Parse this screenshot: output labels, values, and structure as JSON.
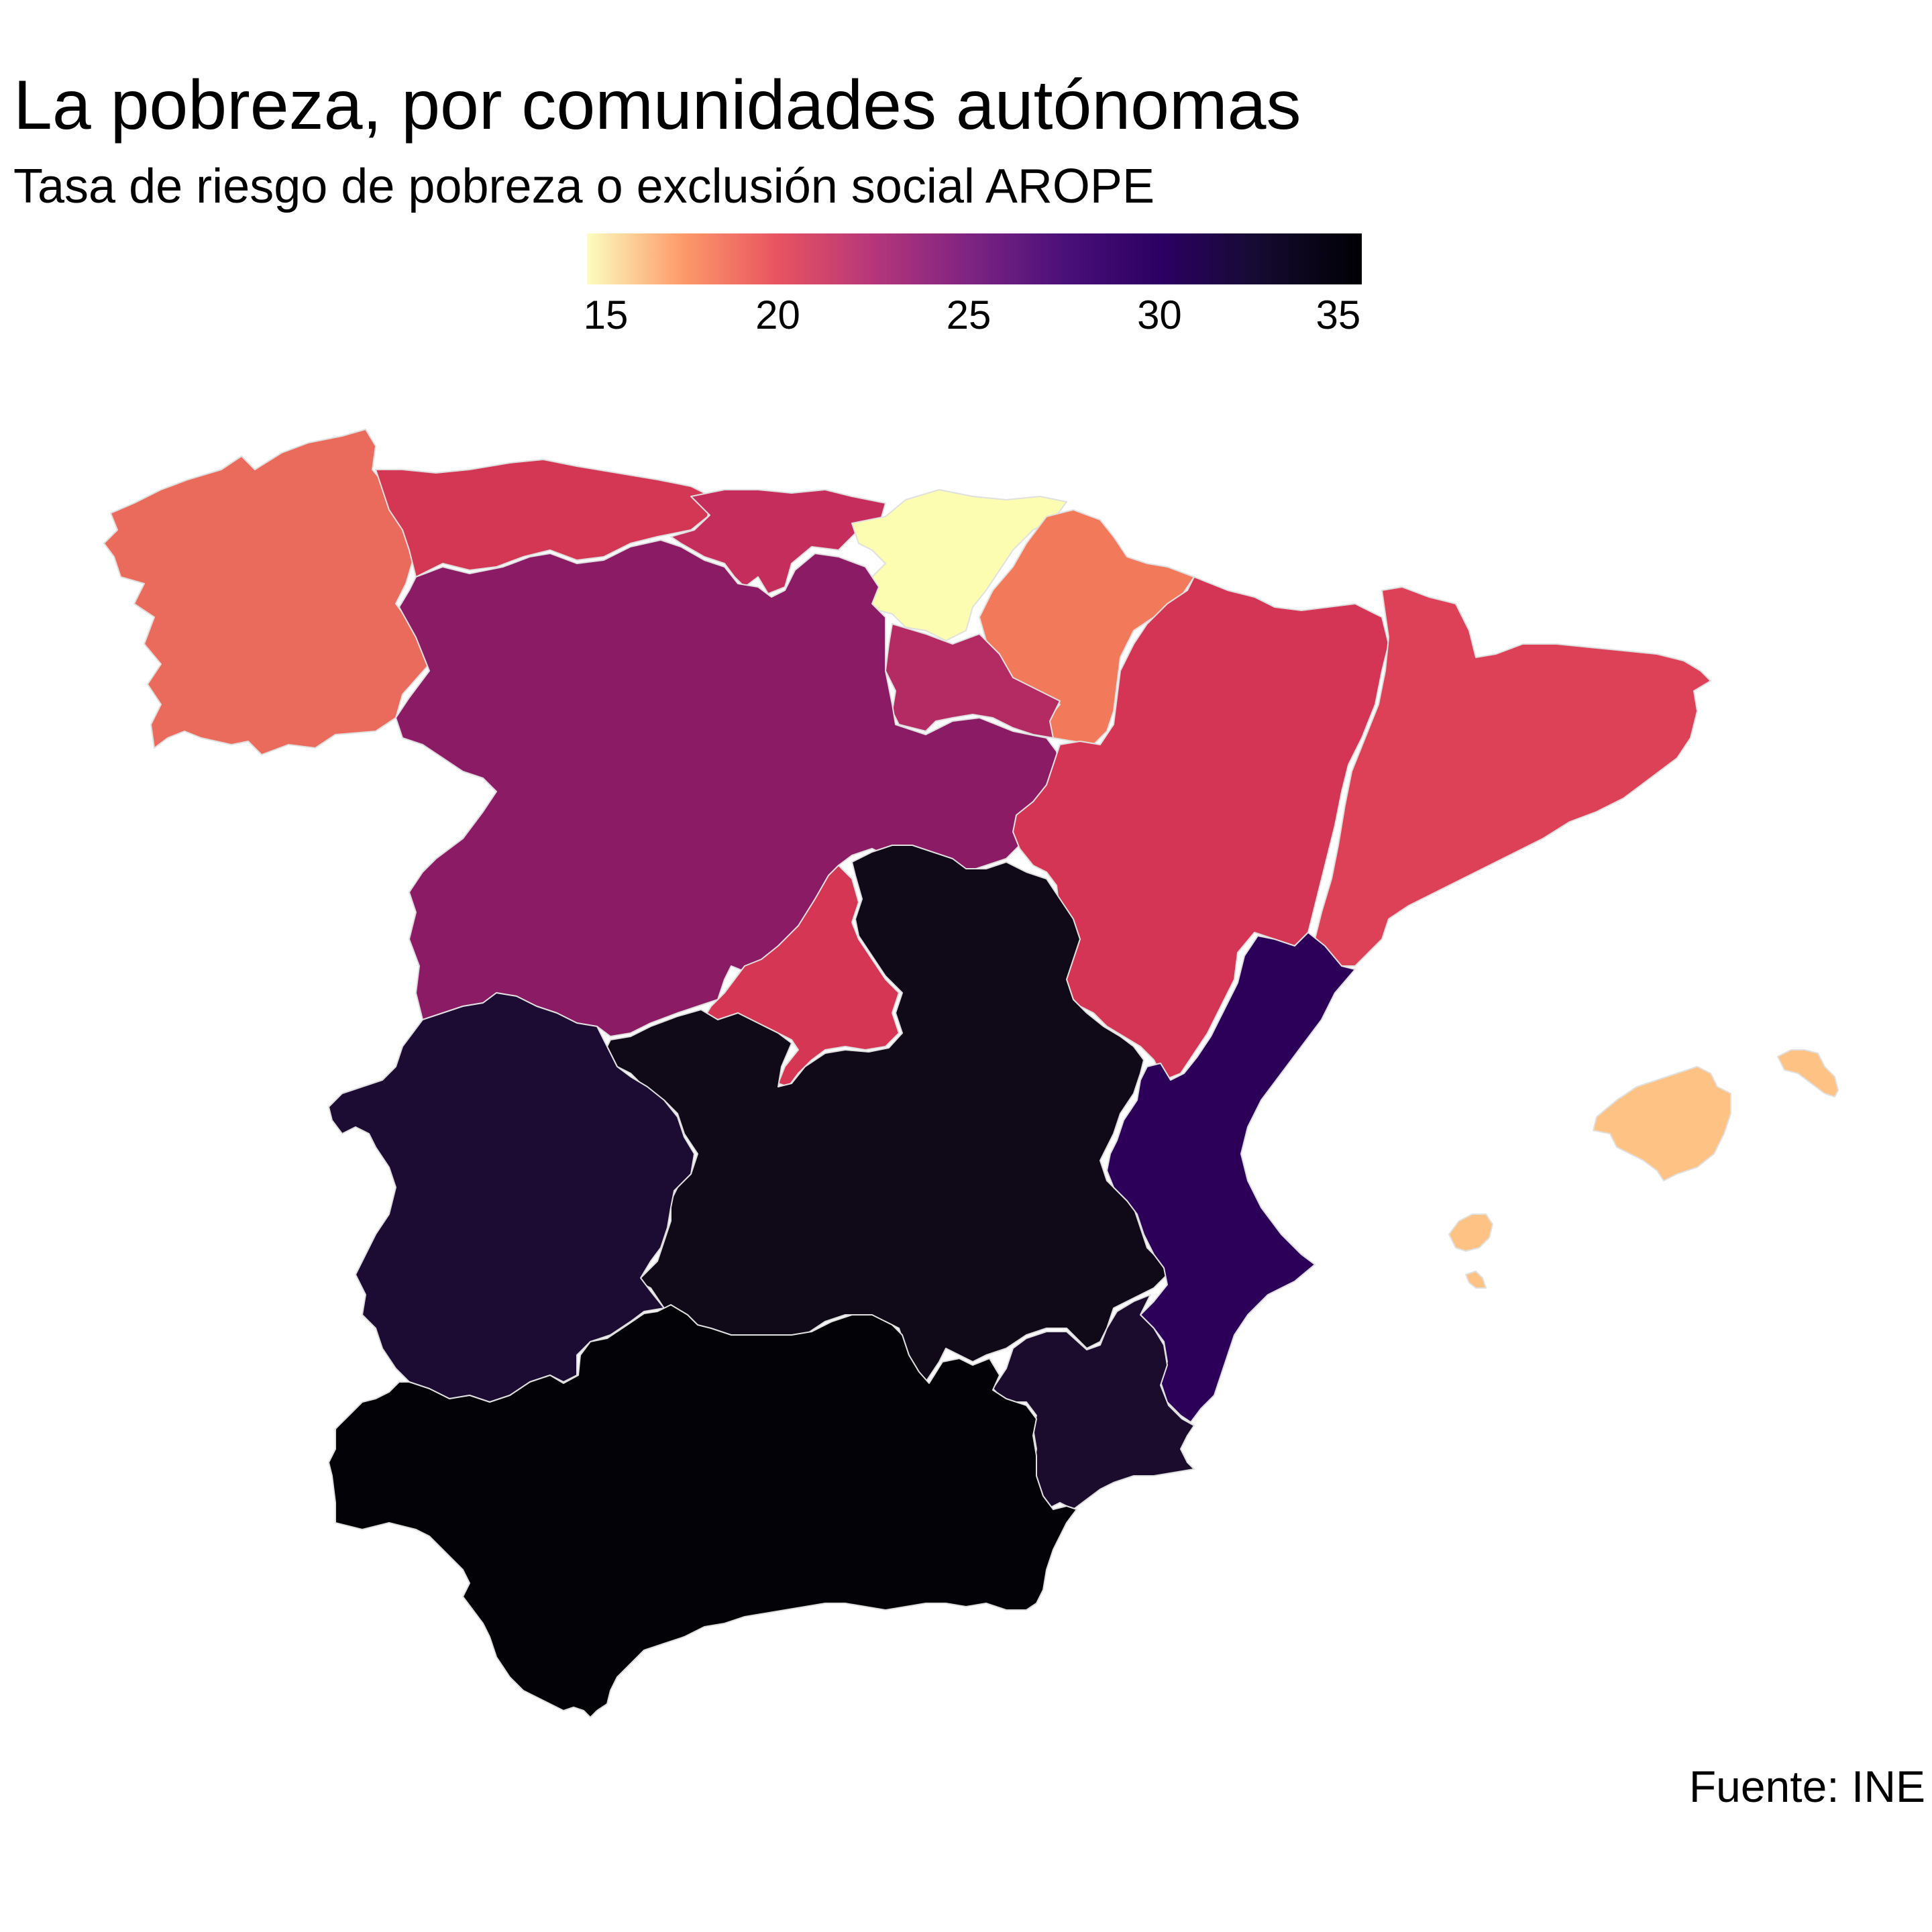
{
  "title": "La pobreza, por comunidades autónomas",
  "subtitle": "Tasa de riesgo de pobreza o exclusión social AROPE",
  "caption": "Fuente: INE",
  "legend": {
    "min": 15,
    "max": 35.3,
    "ticks": [
      "15",
      "20",
      "25",
      "30",
      "35"
    ],
    "tick_values": [
      15,
      20,
      25,
      30,
      35
    ],
    "color_stops": [
      {
        "value": 15,
        "color": "#fcfdbf"
      },
      {
        "value": 17.5,
        "color": "#fd9a6a"
      },
      {
        "value": 20,
        "color": "#e85362"
      },
      {
        "value": 22.5,
        "color": "#b5367a"
      },
      {
        "value": 25,
        "color": "#7e2482"
      },
      {
        "value": 27.5,
        "color": "#4a1079"
      },
      {
        "value": 30,
        "color": "#2c0063"
      },
      {
        "value": 32.5,
        "color": "#160b32"
      },
      {
        "value": 35.3,
        "color": "#000004"
      }
    ]
  },
  "regions": [
    {
      "id": "galicia",
      "color": "#ea6a5b"
    },
    {
      "id": "asturias",
      "color": "#d33754"
    },
    {
      "id": "cantabria",
      "color": "#c52e5c"
    },
    {
      "id": "pais-vasco",
      "color": "#fcfdb0"
    },
    {
      "id": "navarra",
      "color": "#f3795b"
    },
    {
      "id": "la-rioja",
      "color": "#b42b63"
    },
    {
      "id": "castilla-y-leon",
      "color": "#8b1b64"
    },
    {
      "id": "aragon",
      "color": "#d53555"
    },
    {
      "id": "cataluna",
      "color": "#dc4157"
    },
    {
      "id": "madrid",
      "color": "#d53654"
    },
    {
      "id": "castilla-la-mancha",
      "color": "#100a18"
    },
    {
      "id": "extremadura",
      "color": "#1c0b32"
    },
    {
      "id": "comunidad-valenciana",
      "color": "#2c0059"
    },
    {
      "id": "murcia",
      "color": "#1b0b2d"
    },
    {
      "id": "andalucia",
      "color": "#020207"
    },
    {
      "id": "baleares",
      "color": "#fec284"
    }
  ]
}
